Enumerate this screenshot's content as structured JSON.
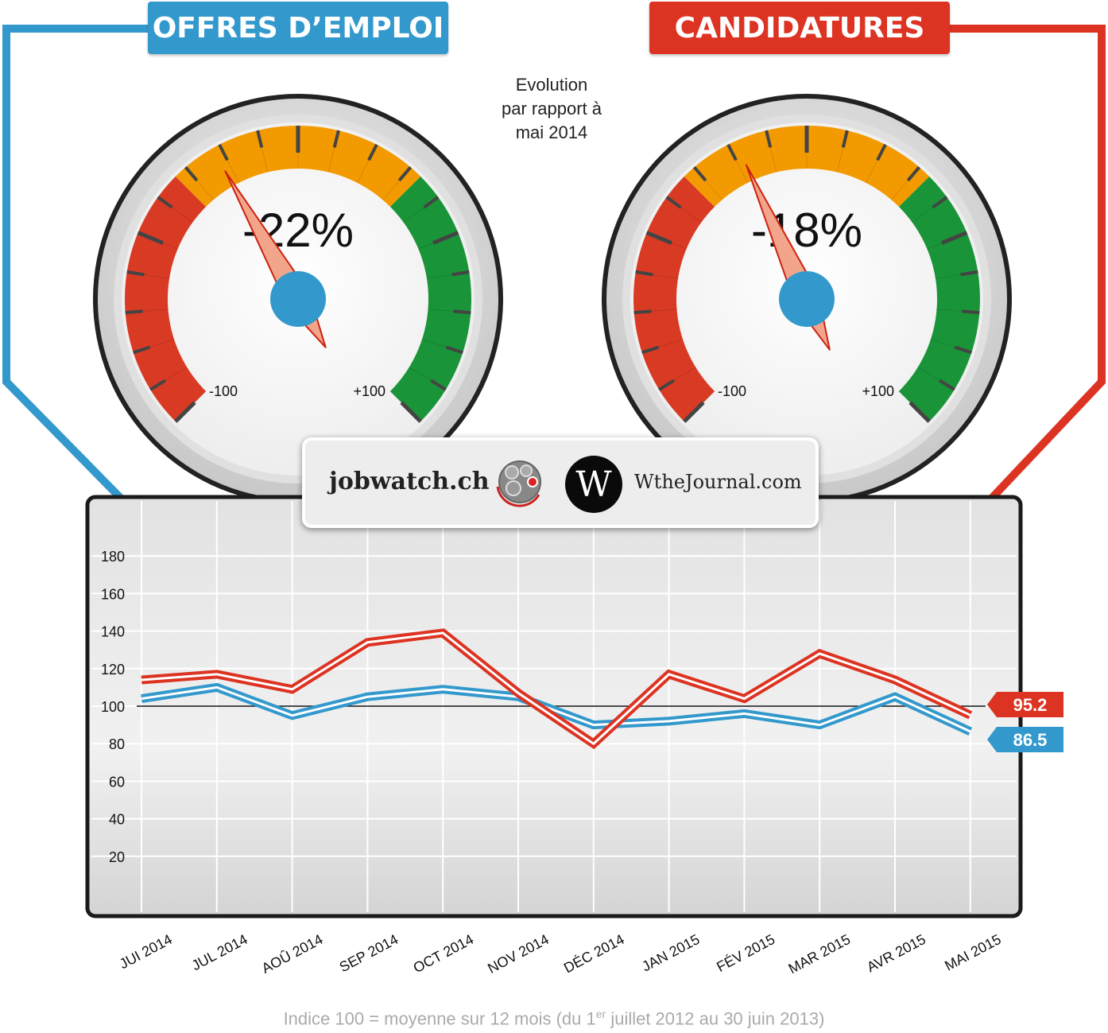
{
  "header": {
    "left_label": "OFFRES D’EMPLOI",
    "right_label": "CANDIDATURES",
    "note_lines": [
      "Evolution",
      "par rapport à",
      "mai 2014"
    ],
    "left_color": "#3399cc",
    "right_color": "#dd3322"
  },
  "gauges": [
    {
      "name": "offres",
      "value": -22,
      "label": "-22%",
      "min_label": "-100",
      "max_label": "+100"
    },
    {
      "name": "candidatures",
      "value": -18,
      "label": "-18%",
      "min_label": "-100",
      "max_label": "+100"
    }
  ],
  "logos": {
    "left_text": "jobwatch.ch",
    "right_letter": "W",
    "right_text": "WtheJournal.com"
  },
  "chart_data": {
    "type": "line",
    "x": [
      "JUI 2014",
      "JUL 2014",
      "AOÛ 2014",
      "SEP 2014",
      "OCT 2014",
      "NOV 2014",
      "DÉC 2014",
      "JAN 2015",
      "FÉV 2015",
      "MAR 2015",
      "AVR 2015",
      "MAI 2015"
    ],
    "series": [
      {
        "color": "#dd3322",
        "values": [
          114,
          117,
          109,
          134,
          139,
          107,
          80,
          117,
          104,
          128,
          114,
          95.2
        ]
      },
      {
        "color": "#3399cc",
        "values": [
          104,
          110,
          95,
          105,
          109,
          105,
          90,
          92,
          96,
          90,
          105,
          86.5
        ]
      }
    ],
    "yticks": [
      20,
      40,
      60,
      80,
      100,
      120,
      140,
      160,
      180
    ],
    "ylim": [
      0,
      190
    ],
    "reference_line": 100,
    "end_labels": [
      "95.2",
      "86.5"
    ],
    "grid": true
  },
  "footer": {
    "note_before": "Indice 100 = moyenne sur 12 mois (du 1",
    "note_sup": "er",
    "note_after": " juillet 2012 au 30 juin 2013)"
  }
}
